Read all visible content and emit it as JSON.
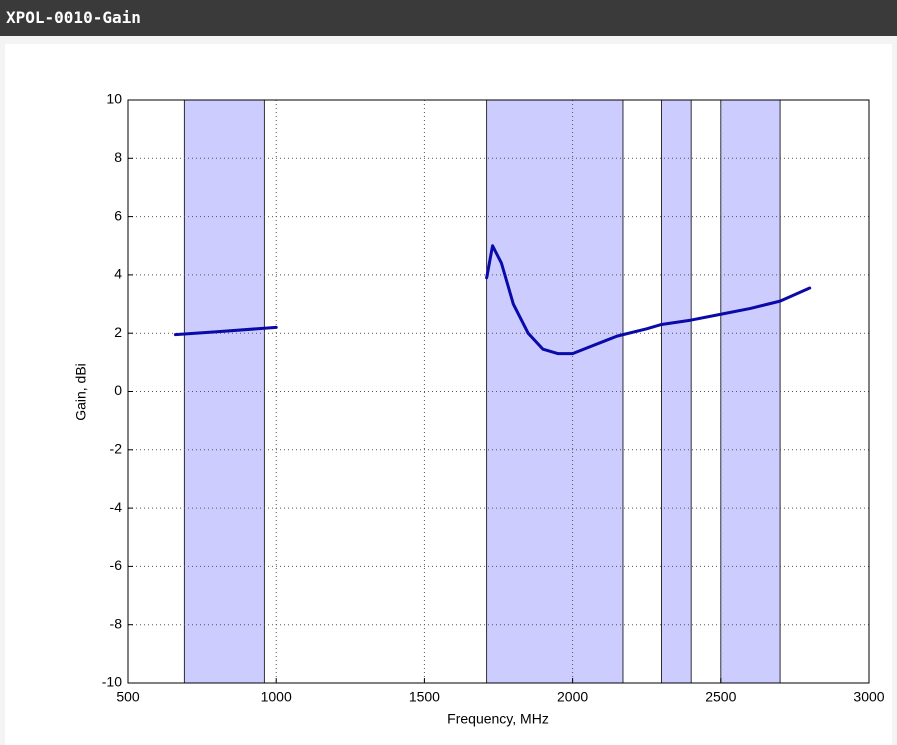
{
  "chart_data": {
    "type": "line",
    "title": "XPOL-0010-Gain",
    "xlabel": "Frequency, MHz",
    "ylabel": "Gain, dBi",
    "xlim": [
      500,
      3000
    ],
    "xticks": [
      500,
      1000,
      1500,
      2000,
      2500,
      3000
    ],
    "ylim": [
      -10,
      10
    ],
    "yticks": [
      -10,
      -8,
      -6,
      -4,
      -2,
      0,
      2,
      4,
      6,
      8,
      10
    ],
    "grid": true,
    "bands": [
      [
        690,
        960
      ],
      [
        1710,
        2170
      ],
      [
        2300,
        2400
      ],
      [
        2500,
        2700
      ]
    ],
    "band_color": "#ccccff",
    "series": [
      {
        "color": "#0a0aa8",
        "x": [
          660,
          800,
          1000,
          1350,
          1710,
          1730,
          1760,
          1800,
          1850,
          1900,
          1950,
          2000,
          2050,
          2100,
          2150,
          2250,
          2300,
          2400,
          2500,
          2600,
          2700,
          2800
        ],
        "values": [
          1.95,
          2.05,
          2.2,
          null,
          3.9,
          5.0,
          4.4,
          3.0,
          2.0,
          1.45,
          1.3,
          1.3,
          1.5,
          1.7,
          1.9,
          2.15,
          2.3,
          2.45,
          2.65,
          2.85,
          3.1,
          3.55
        ]
      }
    ]
  }
}
